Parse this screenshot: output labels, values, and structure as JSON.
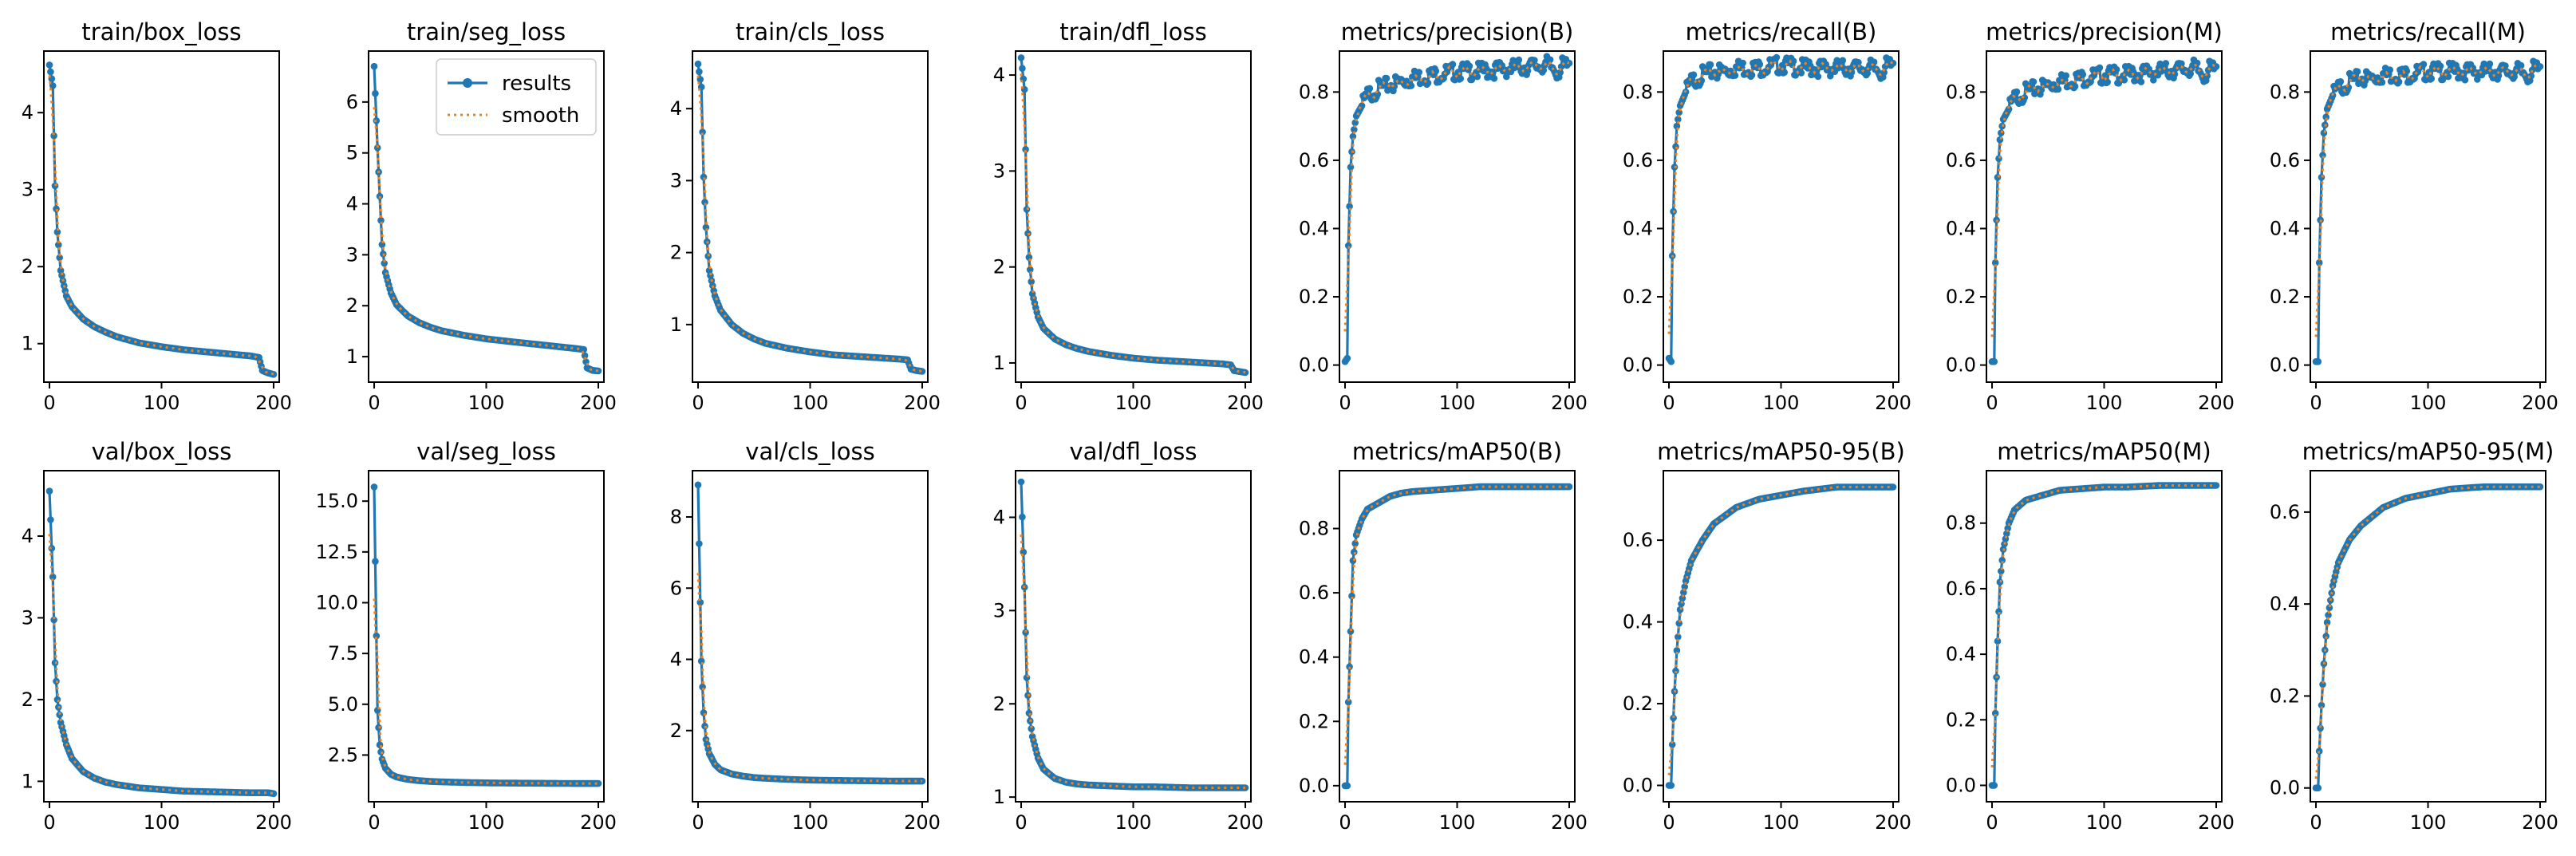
{
  "legend": {
    "results_label": "results",
    "smooth_label": "smooth",
    "placement": "upper-right of subplot 2"
  },
  "colors": {
    "results": "#1f77b4",
    "smooth": "#ff7f0e"
  },
  "chart_data": [
    {
      "type": "line",
      "title": "train/box_loss",
      "ylim": [
        0.5,
        4.8
      ],
      "yticks": [
        "1",
        "2",
        "3",
        "4"
      ],
      "xticks": [
        "0",
        "100",
        "200"
      ],
      "xlim": [
        -5,
        205
      ],
      "series": [
        {
          "name": "results",
          "x": [
            0,
            3,
            5,
            7,
            10,
            15,
            20,
            30,
            40,
            50,
            60,
            80,
            100,
            120,
            150,
            180,
            187,
            190,
            195,
            200
          ],
          "values": [
            4.62,
            4.35,
            3.05,
            2.45,
            1.95,
            1.62,
            1.48,
            1.32,
            1.22,
            1.15,
            1.09,
            1.01,
            0.96,
            0.92,
            0.88,
            0.84,
            0.82,
            0.65,
            0.62,
            0.6
          ]
        }
      ]
    },
    {
      "type": "line",
      "title": "train/seg_loss",
      "ylim": [
        0.5,
        7.0
      ],
      "yticks": [
        "1",
        "2",
        "3",
        "4",
        "5",
        "6"
      ],
      "xticks": [
        "0",
        "100",
        "200"
      ],
      "xlim": [
        -5,
        205
      ],
      "series": [
        {
          "name": "results",
          "x": [
            0,
            3,
            5,
            7,
            10,
            15,
            20,
            30,
            40,
            50,
            60,
            80,
            100,
            120,
            150,
            180,
            187,
            190,
            195,
            200
          ],
          "values": [
            6.7,
            5.1,
            4.15,
            3.2,
            2.65,
            2.25,
            2.02,
            1.8,
            1.67,
            1.58,
            1.51,
            1.42,
            1.35,
            1.3,
            1.23,
            1.16,
            1.14,
            0.78,
            0.73,
            0.72
          ]
        }
      ]
    },
    {
      "type": "line",
      "title": "train/cls_loss",
      "ylim": [
        0.2,
        4.8
      ],
      "yticks": [
        "1",
        "2",
        "3",
        "4"
      ],
      "xticks": [
        "0",
        "100",
        "200"
      ],
      "xlim": [
        -5,
        205
      ],
      "series": [
        {
          "name": "results",
          "x": [
            0,
            3,
            5,
            7,
            10,
            15,
            20,
            30,
            40,
            50,
            60,
            80,
            100,
            120,
            150,
            180,
            187,
            190,
            195,
            200
          ],
          "values": [
            4.62,
            4.3,
            3.05,
            2.35,
            1.75,
            1.4,
            1.2,
            1.0,
            0.88,
            0.8,
            0.74,
            0.67,
            0.62,
            0.58,
            0.55,
            0.52,
            0.51,
            0.38,
            0.36,
            0.35
          ]
        }
      ]
    },
    {
      "type": "line",
      "title": "train/dfl_loss",
      "ylim": [
        0.8,
        4.25
      ],
      "yticks": [
        "1",
        "2",
        "3",
        "4"
      ],
      "xticks": [
        "0",
        "100",
        "200"
      ],
      "xlim": [
        -5,
        205
      ],
      "series": [
        {
          "name": "results",
          "x": [
            0,
            3,
            5,
            7,
            10,
            15,
            20,
            30,
            40,
            50,
            60,
            80,
            100,
            120,
            150,
            180,
            187,
            190,
            195,
            200
          ],
          "values": [
            4.18,
            3.85,
            2.6,
            2.1,
            1.72,
            1.48,
            1.36,
            1.25,
            1.19,
            1.15,
            1.12,
            1.08,
            1.05,
            1.03,
            1.01,
            0.99,
            0.98,
            0.92,
            0.91,
            0.9
          ]
        }
      ]
    },
    {
      "type": "line",
      "title": "metrics/precision(B)",
      "ylim": [
        -0.05,
        0.92
      ],
      "yticks": [
        "0.0",
        "0.2",
        "0.4",
        "0.6",
        "0.8"
      ],
      "xticks": [
        "0",
        "100",
        "200"
      ],
      "xlim": [
        -5,
        205
      ],
      "series": [
        {
          "name": "results",
          "x": [
            0,
            2,
            3,
            5,
            7,
            10,
            15,
            20,
            30,
            40,
            50,
            60,
            80,
            100,
            120,
            150,
            180,
            190,
            195,
            200
          ],
          "values": [
            0.01,
            0.02,
            0.35,
            0.58,
            0.67,
            0.73,
            0.76,
            0.79,
            0.81,
            0.82,
            0.83,
            0.84,
            0.85,
            0.86,
            0.86,
            0.87,
            0.88,
            0.86,
            0.88,
            0.87
          ]
        }
      ]
    },
    {
      "type": "line",
      "title": "metrics/recall(B)",
      "ylim": [
        -0.05,
        0.92
      ],
      "yticks": [
        "0.0",
        "0.2",
        "0.4",
        "0.6",
        "0.8"
      ],
      "xticks": [
        "0",
        "100",
        "200"
      ],
      "xlim": [
        -5,
        205
      ],
      "series": [
        {
          "name": "results",
          "x": [
            0,
            2,
            3,
            5,
            7,
            10,
            15,
            20,
            30,
            40,
            50,
            60,
            80,
            100,
            120,
            150,
            180,
            190,
            195,
            200
          ],
          "values": [
            0.02,
            0.01,
            0.32,
            0.58,
            0.7,
            0.76,
            0.8,
            0.83,
            0.85,
            0.86,
            0.86,
            0.87,
            0.87,
            0.88,
            0.87,
            0.87,
            0.87,
            0.86,
            0.88,
            0.87
          ]
        }
      ]
    },
    {
      "type": "line",
      "title": "metrics/precision(M)",
      "ylim": [
        -0.05,
        0.92
      ],
      "yticks": [
        "0.0",
        "0.2",
        "0.4",
        "0.6",
        "0.8"
      ],
      "xticks": [
        "0",
        "100",
        "200"
      ],
      "xlim": [
        -5,
        205
      ],
      "series": [
        {
          "name": "results",
          "x": [
            0,
            2,
            3,
            5,
            7,
            10,
            15,
            20,
            30,
            40,
            50,
            60,
            80,
            100,
            120,
            150,
            180,
            190,
            195,
            200
          ],
          "values": [
            0.01,
            0.01,
            0.3,
            0.55,
            0.66,
            0.72,
            0.75,
            0.78,
            0.8,
            0.81,
            0.82,
            0.83,
            0.84,
            0.85,
            0.85,
            0.86,
            0.87,
            0.85,
            0.87,
            0.86
          ]
        }
      ]
    },
    {
      "type": "line",
      "title": "metrics/recall(M)",
      "ylim": [
        -0.05,
        0.92
      ],
      "yticks": [
        "0.0",
        "0.2",
        "0.4",
        "0.6",
        "0.8"
      ],
      "xticks": [
        "0",
        "100",
        "200"
      ],
      "xlim": [
        -5,
        205
      ],
      "series": [
        {
          "name": "results",
          "x": [
            0,
            2,
            3,
            5,
            7,
            10,
            15,
            20,
            30,
            40,
            50,
            60,
            80,
            100,
            120,
            150,
            180,
            190,
            195,
            200
          ],
          "values": [
            0.01,
            0.01,
            0.3,
            0.55,
            0.68,
            0.75,
            0.79,
            0.81,
            0.83,
            0.84,
            0.84,
            0.85,
            0.85,
            0.86,
            0.86,
            0.86,
            0.86,
            0.85,
            0.87,
            0.86
          ]
        }
      ]
    },
    {
      "type": "line",
      "title": "val/box_loss",
      "ylim": [
        0.75,
        4.8
      ],
      "yticks": [
        "1",
        "2",
        "3",
        "4"
      ],
      "xticks": [
        "0",
        "100",
        "200"
      ],
      "xlim": [
        -5,
        205
      ],
      "series": [
        {
          "name": "results",
          "x": [
            0,
            3,
            5,
            7,
            10,
            15,
            20,
            30,
            40,
            50,
            60,
            80,
            100,
            120,
            150,
            180,
            190,
            195,
            200
          ],
          "values": [
            4.55,
            3.5,
            2.45,
            2.0,
            1.72,
            1.45,
            1.28,
            1.12,
            1.04,
            0.99,
            0.96,
            0.92,
            0.9,
            0.88,
            0.87,
            0.86,
            0.86,
            0.86,
            0.85
          ]
        }
      ]
    },
    {
      "type": "line",
      "title": "val/seg_loss",
      "ylim": [
        0.2,
        16.5
      ],
      "yticks": [
        "2.5",
        "5.0",
        "7.5",
        "10.0",
        "12.5",
        "15.0"
      ],
      "xticks": [
        "0",
        "100",
        "200"
      ],
      "xlim": [
        -5,
        205
      ],
      "series": [
        {
          "name": "results",
          "x": [
            0,
            3,
            5,
            7,
            10,
            15,
            20,
            30,
            40,
            50,
            60,
            80,
            100,
            120,
            150,
            180,
            190,
            195,
            200
          ],
          "values": [
            15.7,
            4.7,
            3.0,
            2.3,
            1.85,
            1.55,
            1.42,
            1.3,
            1.24,
            1.2,
            1.18,
            1.15,
            1.13,
            1.12,
            1.11,
            1.1,
            1.1,
            1.1,
            1.1
          ]
        }
      ]
    },
    {
      "type": "line",
      "title": "val/cls_loss",
      "ylim": [
        0.0,
        9.3
      ],
      "yticks": [
        "2",
        "4",
        "6",
        "8"
      ],
      "xticks": [
        "0",
        "100",
        "200"
      ],
      "xlim": [
        -5,
        205
      ],
      "series": [
        {
          "name": "results",
          "x": [
            0,
            3,
            5,
            7,
            10,
            15,
            20,
            30,
            40,
            50,
            60,
            80,
            100,
            120,
            150,
            180,
            190,
            195,
            200
          ],
          "values": [
            8.9,
            3.95,
            2.5,
            1.75,
            1.35,
            1.05,
            0.9,
            0.78,
            0.72,
            0.68,
            0.66,
            0.63,
            0.61,
            0.6,
            0.59,
            0.58,
            0.58,
            0.58,
            0.58
          ]
        }
      ]
    },
    {
      "type": "line",
      "title": "val/dfl_loss",
      "ylim": [
        0.95,
        4.5
      ],
      "yticks": [
        "1",
        "2",
        "3",
        "4"
      ],
      "xticks": [
        "0",
        "100",
        "200"
      ],
      "xlim": [
        -5,
        205
      ],
      "series": [
        {
          "name": "results",
          "x": [
            0,
            3,
            5,
            7,
            10,
            15,
            20,
            30,
            40,
            50,
            60,
            80,
            100,
            120,
            150,
            180,
            190,
            195,
            200
          ],
          "values": [
            4.38,
            3.25,
            2.28,
            1.9,
            1.65,
            1.42,
            1.3,
            1.2,
            1.16,
            1.14,
            1.13,
            1.12,
            1.11,
            1.11,
            1.1,
            1.1,
            1.1,
            1.1,
            1.1
          ]
        }
      ]
    },
    {
      "type": "line",
      "title": "metrics/mAP50(B)",
      "ylim": [
        -0.05,
        0.98
      ],
      "yticks": [
        "0.0",
        "0.2",
        "0.4",
        "0.6",
        "0.8"
      ],
      "xticks": [
        "0",
        "100",
        "200"
      ],
      "xlim": [
        -5,
        205
      ],
      "series": [
        {
          "name": "results",
          "x": [
            0,
            2,
            3,
            5,
            7,
            10,
            15,
            20,
            30,
            40,
            50,
            60,
            80,
            100,
            120,
            150,
            180,
            190,
            195,
            200
          ],
          "values": [
            0.0,
            0.0,
            0.26,
            0.48,
            0.7,
            0.78,
            0.83,
            0.86,
            0.88,
            0.9,
            0.91,
            0.915,
            0.92,
            0.925,
            0.93,
            0.93,
            0.93,
            0.93,
            0.93,
            0.93
          ]
        }
      ]
    },
    {
      "type": "line",
      "title": "metrics/mAP50-95(B)",
      "ylim": [
        -0.04,
        0.77
      ],
      "yticks": [
        "0.0",
        "0.2",
        "0.4",
        "0.6"
      ],
      "xticks": [
        "0",
        "100",
        "200"
      ],
      "xlim": [
        -5,
        205
      ],
      "series": [
        {
          "name": "results",
          "x": [
            0,
            2,
            3,
            5,
            7,
            10,
            15,
            20,
            30,
            40,
            50,
            60,
            80,
            100,
            120,
            150,
            180,
            190,
            195,
            200
          ],
          "values": [
            0.0,
            0.0,
            0.1,
            0.23,
            0.33,
            0.43,
            0.5,
            0.55,
            0.6,
            0.64,
            0.66,
            0.68,
            0.7,
            0.71,
            0.72,
            0.73,
            0.73,
            0.73,
            0.73,
            0.73
          ]
        }
      ]
    },
    {
      "type": "line",
      "title": "metrics/mAP50(M)",
      "ylim": [
        -0.05,
        0.96
      ],
      "yticks": [
        "0.0",
        "0.2",
        "0.4",
        "0.6",
        "0.8"
      ],
      "xticks": [
        "0",
        "100",
        "200"
      ],
      "xlim": [
        -5,
        205
      ],
      "series": [
        {
          "name": "results",
          "x": [
            0,
            2,
            3,
            5,
            7,
            10,
            15,
            20,
            30,
            40,
            50,
            60,
            80,
            100,
            120,
            150,
            180,
            190,
            195,
            200
          ],
          "values": [
            0.0,
            0.0,
            0.22,
            0.44,
            0.62,
            0.72,
            0.8,
            0.84,
            0.87,
            0.88,
            0.89,
            0.9,
            0.905,
            0.91,
            0.91,
            0.915,
            0.915,
            0.915,
            0.915,
            0.915
          ]
        }
      ]
    },
    {
      "type": "line",
      "title": "metrics/mAP50-95(M)",
      "ylim": [
        -0.03,
        0.69
      ],
      "yticks": [
        "0.0",
        "0.2",
        "0.4",
        "0.6"
      ],
      "xticks": [
        "0",
        "100",
        "200"
      ],
      "xlim": [
        -5,
        205
      ],
      "series": [
        {
          "name": "results",
          "x": [
            0,
            2,
            3,
            5,
            7,
            10,
            15,
            20,
            30,
            40,
            50,
            60,
            80,
            100,
            120,
            150,
            180,
            190,
            195,
            200
          ],
          "values": [
            0.0,
            0.0,
            0.08,
            0.18,
            0.27,
            0.36,
            0.44,
            0.49,
            0.54,
            0.57,
            0.59,
            0.61,
            0.63,
            0.64,
            0.65,
            0.655,
            0.655,
            0.655,
            0.655,
            0.655
          ]
        }
      ]
    }
  ]
}
